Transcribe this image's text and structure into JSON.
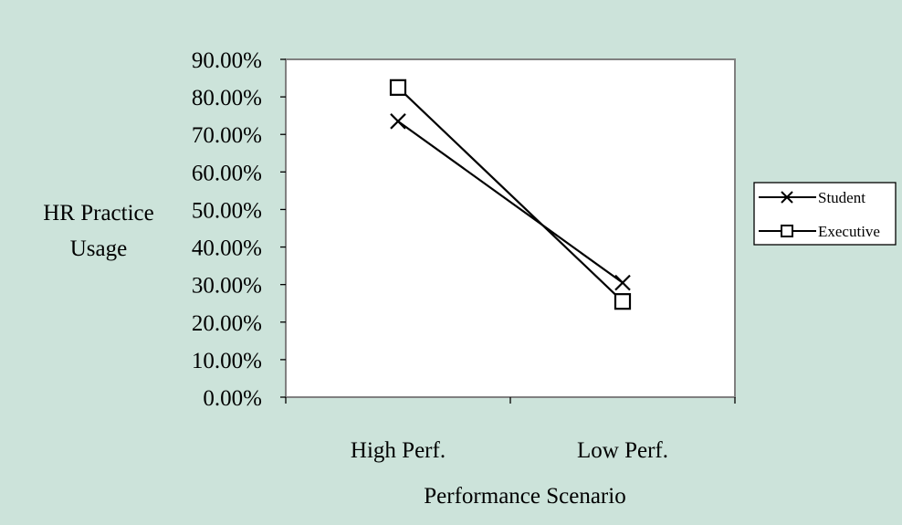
{
  "chart_data": {
    "type": "line",
    "title": "",
    "xlabel": "Performance Scenario",
    "ylabel": "HR Practice Usage",
    "categories": [
      "High Perf.",
      "Low Perf."
    ],
    "ylim": [
      0,
      0.9
    ],
    "yticks": [
      0,
      0.1,
      0.2,
      0.3,
      0.4,
      0.5,
      0.6,
      0.7,
      0.8,
      0.9
    ],
    "ytick_labels": [
      "0.00%",
      "10.00%",
      "20.00%",
      "30.00%",
      "40.00%",
      "50.00%",
      "60.00%",
      "70.00%",
      "80.00%",
      "90.00%"
    ],
    "series": [
      {
        "name": "Student",
        "marker": "x-marker",
        "values": [
          0.735,
          0.305
        ]
      },
      {
        "name": "Executive",
        "marker": "square-marker",
        "values": [
          0.825,
          0.255
        ]
      }
    ],
    "grid": false,
    "legend": "right",
    "colors": {
      "background": "#cce3da",
      "plot_area": "#ffffff",
      "plot_border": "#808080",
      "line": "#000000",
      "legend_background": "#ffffff"
    }
  }
}
